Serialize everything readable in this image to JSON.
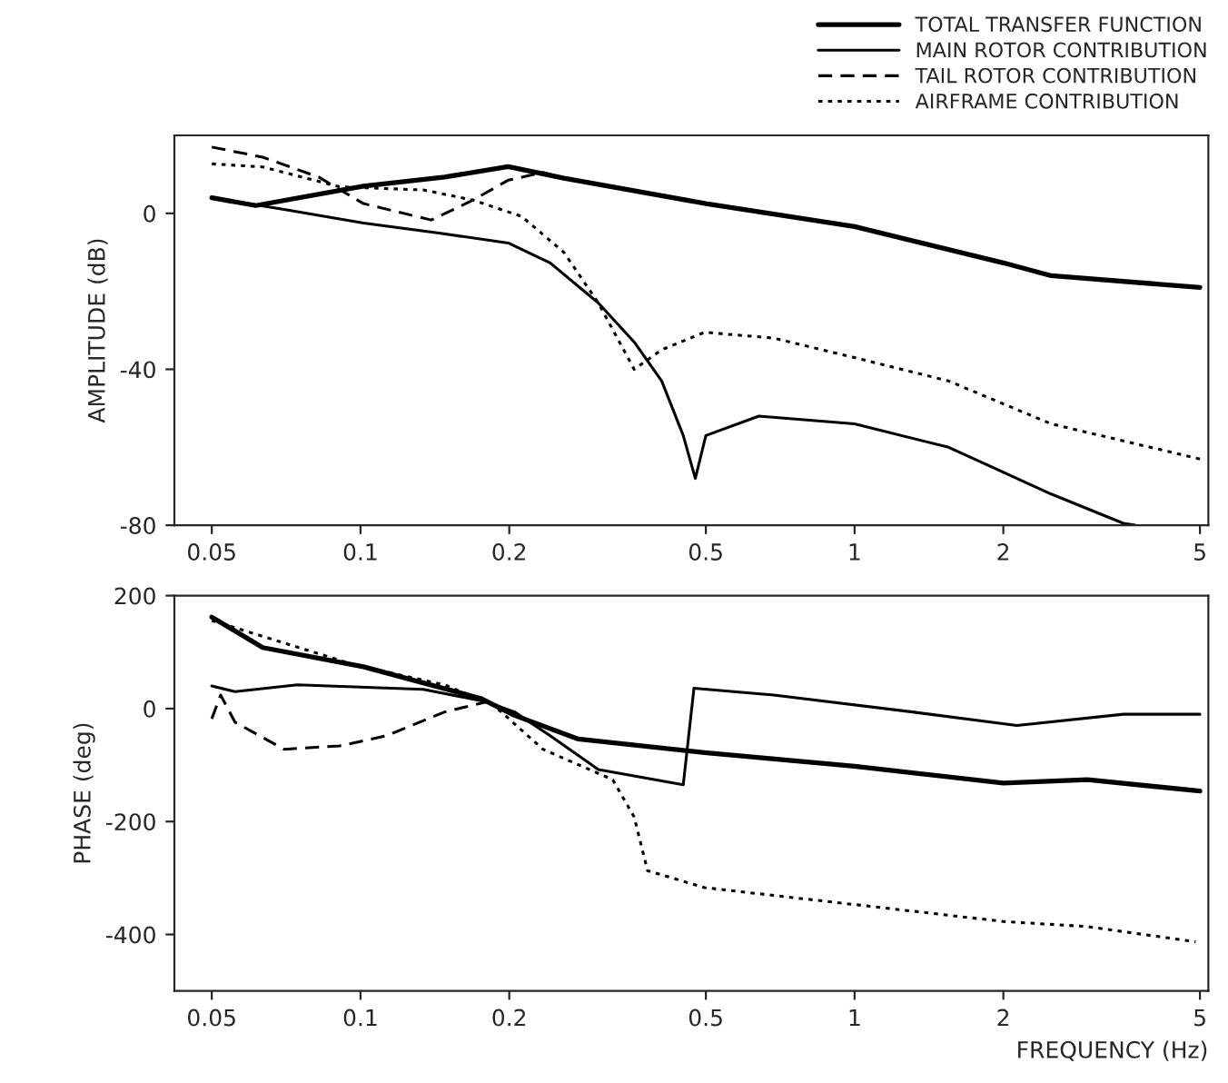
{
  "chart_data": [
    {
      "type": "line",
      "ylabel": "AMPLITUDE (dB)",
      "log": "x",
      "xlim": [
        0.042,
        5.2
      ],
      "xticks": [
        0.05,
        0.1,
        0.2,
        0.5,
        1,
        2,
        5
      ],
      "ylim": [
        -80,
        20
      ],
      "yticks": [
        -80,
        -40,
        0
      ],
      "grid": false,
      "legend": "top right",
      "marker": "none",
      "series": [
        {
          "name": "TOTAL TRANSFER FUNCTION",
          "color": "#000000",
          "line_style": "solid",
          "x": [
            0.05,
            0.0614,
            0.1014,
            0.148,
            0.199,
            0.258,
            0.5,
            1.0,
            2.0,
            2.5,
            5.0
          ],
          "values": [
            4,
            2,
            7,
            9.3,
            12,
            9,
            2.5,
            -3.4,
            -12.7,
            -16,
            -19
          ]
        },
        {
          "name": "MAIN ROTOR CONTRIBUTION",
          "color": "#000000",
          "line_style": "solid",
          "x": [
            0.05,
            0.07,
            0.1014,
            0.143,
            0.199,
            0.242,
            0.303,
            0.358,
            0.407,
            0.45,
            0.476,
            0.5,
            0.64,
            1.0,
            1.55,
            2.5,
            3.5,
            3.7
          ],
          "values": [
            4,
            1,
            -2.5,
            -5,
            -7.6,
            -12.7,
            -23,
            -33,
            -43,
            -57,
            -68,
            -57,
            -52,
            -54,
            -60,
            -72,
            -79.5,
            -80
          ]
        },
        {
          "name": "TAIL ROTOR CONTRIBUTION",
          "color": "#000000",
          "line_style": "dashed",
          "x": [
            0.05,
            0.0634,
            0.0823,
            0.1014,
            0.139,
            0.169,
            0.199,
            0.234,
            0.258,
            0.5,
            1.0,
            2.0,
            2.5,
            5.0
          ],
          "values": [
            17,
            14.4,
            9.3,
            2.5,
            -1.7,
            3.4,
            8.5,
            10.5,
            9,
            2.5,
            -3.4,
            -12.7,
            -16,
            -19
          ]
        },
        {
          "name": "AIRFRAME CONTRIBUTION",
          "color": "#000000",
          "line_style": "dotted",
          "x": [
            0.05,
            0.0634,
            0.0908,
            0.134,
            0.169,
            0.212,
            0.258,
            0.303,
            0.358,
            0.407,
            0.497,
            0.686,
            1.0,
            1.55,
            2.5,
            5.0
          ],
          "values": [
            12.7,
            11.9,
            6.8,
            6,
            3.4,
            -0.8,
            -10,
            -23,
            -40,
            -35,
            -30.5,
            -32,
            -37,
            -43,
            -54,
            -63
          ]
        }
      ]
    },
    {
      "type": "line",
      "xlabel": "FREQUENCY (Hz)",
      "ylabel": "PHASE (deg)",
      "log": "x",
      "xlim": [
        0.042,
        5.2
      ],
      "xticks": [
        0.05,
        0.1,
        0.2,
        0.5,
        1,
        2,
        5
      ],
      "ylim": [
        -500,
        200
      ],
      "yticks": [
        -400,
        -200,
        0,
        200
      ],
      "grid": false,
      "marker": "none",
      "series": [
        {
          "color": "#000000",
          "line_style": "solid",
          "x": [
            0.05,
            0.0634,
            0.1014,
            0.175,
            0.205,
            0.276,
            0.497,
            1.0,
            2.0,
            2.96,
            5.0
          ],
          "values": [
            162,
            108,
            74,
            18,
            -12,
            -54,
            -78,
            -102,
            -132,
            -126,
            -146
          ]
        },
        {
          "color": "#000000",
          "line_style": "solid",
          "x": [
            0.05,
            0.0557,
            0.0745,
            0.134,
            0.18,
            0.205,
            0.242,
            0.303,
            0.45,
            0.473,
            0.686,
            1.31,
            2.13,
            3.5,
            5.0
          ],
          "values": [
            40,
            30,
            42,
            34,
            12,
            -6,
            -48,
            -108,
            -135,
            36,
            24,
            -6,
            -30,
            -10,
            -10
          ]
        },
        {
          "color": "#000000",
          "line_style": "dashed",
          "x": [
            0.05,
            0.0521,
            0.0557,
            0.07,
            0.0908,
            0.113,
            0.148,
            0.18,
            0.205,
            0.276,
            0.497,
            1.0,
            2.0,
            2.96,
            5.0
          ],
          "values": [
            -18,
            24,
            -24,
            -72,
            -66,
            -48,
            -6,
            12,
            -12,
            -54,
            -78,
            -102,
            -132,
            -126,
            -146
          ]
        },
        {
          "color": "#000000",
          "line_style": "dotted",
          "x": [
            0.05,
            0.0968,
            0.148,
            0.186,
            0.234,
            0.324,
            0.358,
            0.381,
            0.497,
            1.0,
            2.0,
            2.96,
            4.9
          ],
          "values": [
            156,
            78,
            42,
            6,
            -72,
            -126,
            -192,
            -287,
            -317,
            -347,
            -377,
            -386,
            -413
          ]
        }
      ]
    }
  ]
}
